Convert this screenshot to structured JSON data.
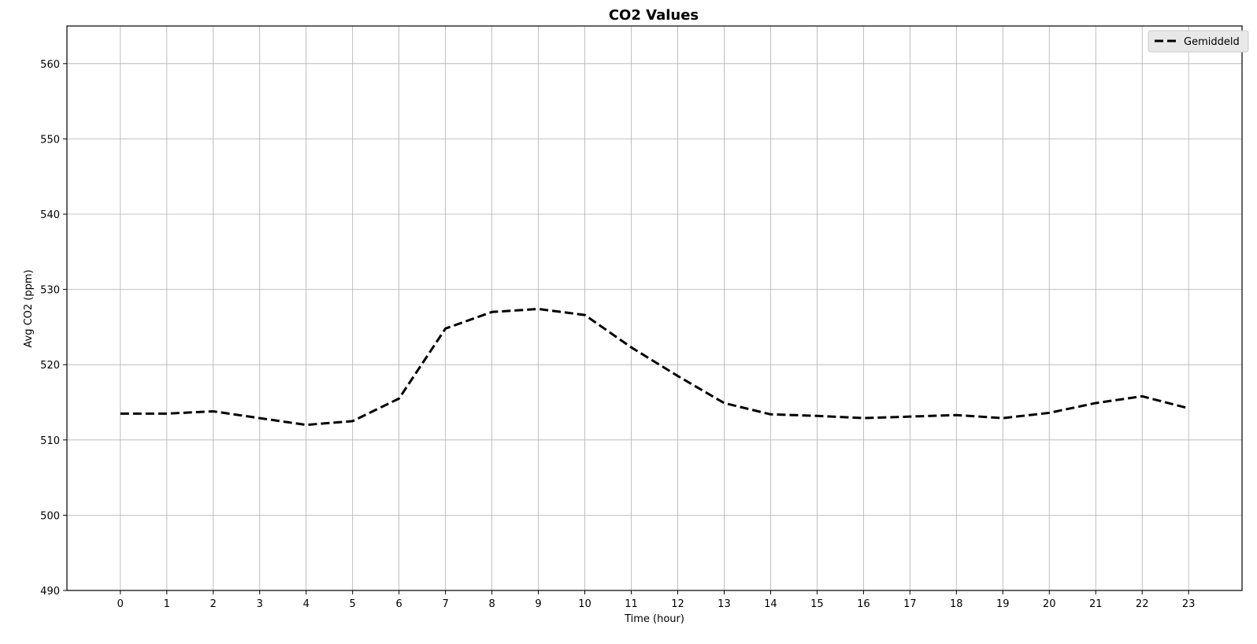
{
  "chart_data": {
    "type": "line",
    "title": "CO2 Values",
    "xlabel": "Time (hour)",
    "ylabel": "Avg CO2 (ppm)",
    "x": [
      0,
      1,
      2,
      3,
      4,
      5,
      6,
      7,
      8,
      9,
      10,
      11,
      12,
      13,
      14,
      15,
      16,
      17,
      18,
      19,
      20,
      21,
      22,
      23
    ],
    "xticks": [
      "0",
      "1",
      "2",
      "3",
      "4",
      "5",
      "6",
      "7",
      "8",
      "9",
      "10",
      "11",
      "12",
      "13",
      "14",
      "15",
      "16",
      "17",
      "18",
      "19",
      "20",
      "21",
      "22",
      "23"
    ],
    "xlim": [
      -1.15,
      24.15
    ],
    "ylim": [
      490,
      565
    ],
    "yticks": [
      490,
      500,
      510,
      520,
      530,
      540,
      550,
      560
    ],
    "grid": true,
    "legend_position": "top-right",
    "series": [
      {
        "name": "Gemiddeld",
        "color": "#000000",
        "line_style": "dashed",
        "values": [
          513.5,
          513.5,
          513.8,
          512.9,
          512.0,
          512.5,
          515.5,
          524.8,
          527.0,
          527.4,
          526.6,
          522.3,
          518.5,
          514.9,
          513.4,
          513.2,
          512.9,
          513.1,
          513.3,
          512.9,
          513.6,
          514.9,
          515.8,
          514.2
        ]
      }
    ]
  }
}
